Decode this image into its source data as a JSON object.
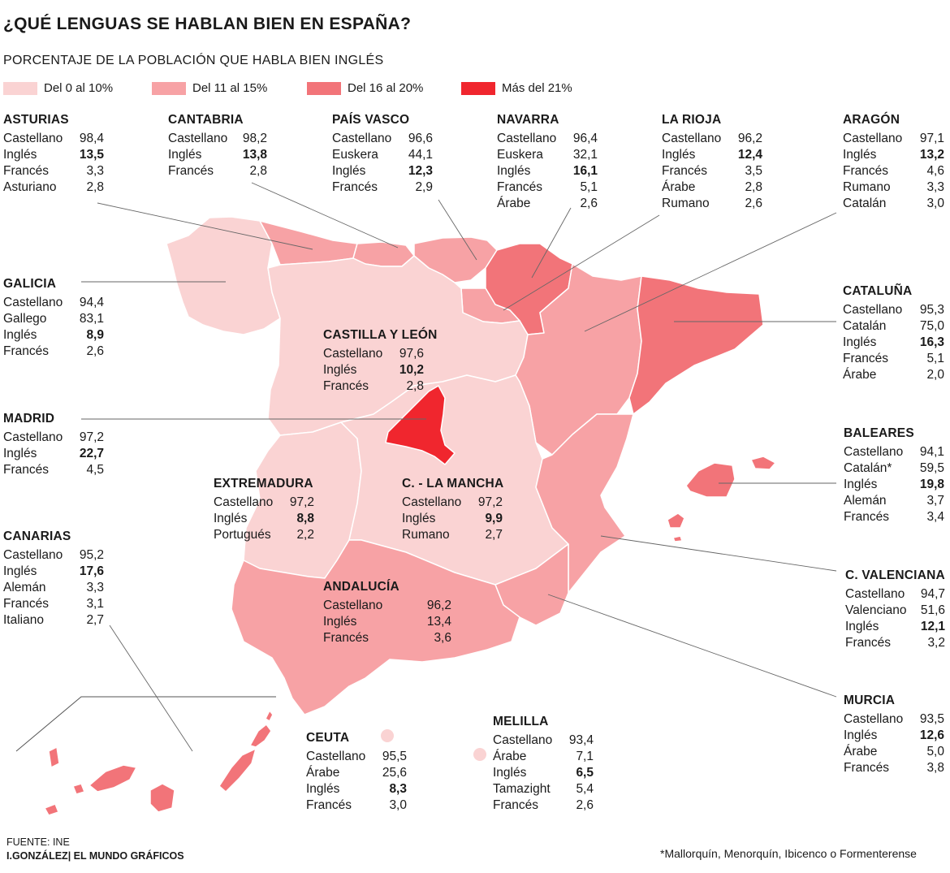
{
  "title": "¿QUÉ LENGUAS SE HABLAN BIEN EN ESPAÑA?",
  "subtitle": "PORCENTAJE DE LA POBLACIÓN QUE HABLA BIEN INGLÉS",
  "legend": [
    {
      "label": "Del 0 al 10%",
      "color": "#fad3d3"
    },
    {
      "label": "Del 11 al 15%",
      "color": "#f7a2a5"
    },
    {
      "label": "Del 16 al 20%",
      "color": "#f27479"
    },
    {
      "label": "Más del 21%",
      "color": "#f0262e"
    }
  ],
  "regions": {
    "asturias": {
      "name": "ASTURIAS",
      "rows": [
        [
          "Castellano",
          "98,4"
        ],
        [
          "Inglés",
          "13,5"
        ],
        [
          "Francés",
          "3,3"
        ],
        [
          "Asturiano",
          "2,8"
        ]
      ]
    },
    "cantabria": {
      "name": "CANTABRIA",
      "rows": [
        [
          "Castellano",
          "98,2"
        ],
        [
          "Inglés",
          "13,8"
        ],
        [
          "Francés",
          "2,8"
        ]
      ]
    },
    "pais_vasco": {
      "name": "PAÍS VASCO",
      "rows": [
        [
          "Castellano",
          "96,6"
        ],
        [
          "Euskera",
          "44,1"
        ],
        [
          "Inglés",
          "12,3"
        ],
        [
          "Francés",
          "2,9"
        ]
      ]
    },
    "navarra": {
      "name": "NAVARRA",
      "rows": [
        [
          "Castellano",
          "96,4"
        ],
        [
          "Euskera",
          "32,1"
        ],
        [
          "Inglés",
          "16,1"
        ],
        [
          "Francés",
          "5,1"
        ],
        [
          "Árabe",
          "2,6"
        ]
      ]
    },
    "la_rioja": {
      "name": "LA RIOJA",
      "rows": [
        [
          "Castellano",
          "96,2"
        ],
        [
          "Inglés",
          "12,4"
        ],
        [
          "Francés",
          "3,5"
        ],
        [
          "Árabe",
          "2,8"
        ],
        [
          "Rumano",
          "2,6"
        ]
      ]
    },
    "aragon": {
      "name": "ARAGÓN",
      "rows": [
        [
          "Castellano",
          "97,1"
        ],
        [
          "Inglés",
          "13,2"
        ],
        [
          "Francés",
          "4,6"
        ],
        [
          "Rumano",
          "3,3"
        ],
        [
          "Catalán",
          "3,0"
        ]
      ]
    },
    "galicia": {
      "name": "GALICIA",
      "rows": [
        [
          "Castellano",
          "94,4"
        ],
        [
          "Gallego",
          "83,1"
        ],
        [
          "Inglés",
          "8,9"
        ],
        [
          "Francés",
          "2,6"
        ]
      ]
    },
    "castilla_leon": {
      "name": "CASTILLA Y LEÓN",
      "rows": [
        [
          "Castellano",
          "97,6"
        ],
        [
          "Inglés",
          "10,2"
        ],
        [
          "Francés",
          "2,8"
        ]
      ]
    },
    "cataluna": {
      "name": "CATALUÑA",
      "rows": [
        [
          "Castellano",
          "95,3"
        ],
        [
          "Catalán",
          "75,0"
        ],
        [
          "Inglés",
          "16,3"
        ],
        [
          "Francés",
          "5,1"
        ],
        [
          "Árabe",
          "2,0"
        ]
      ]
    },
    "madrid": {
      "name": "MADRID",
      "rows": [
        [
          "Castellano",
          "97,2"
        ],
        [
          "Inglés",
          "22,7"
        ],
        [
          "Francés",
          "4,5"
        ]
      ]
    },
    "baleares": {
      "name": "BALEARES",
      "rows": [
        [
          "Castellano",
          "94,1"
        ],
        [
          "Catalán*",
          "59,5"
        ],
        [
          "Inglés",
          "19,8"
        ],
        [
          "Alemán",
          "3,7"
        ],
        [
          "Francés",
          "3,4"
        ]
      ]
    },
    "extremadura": {
      "name": "EXTREMADURA",
      "rows": [
        [
          "Castellano",
          "97,2"
        ],
        [
          "Inglés",
          "8,8"
        ],
        [
          "Portugués",
          "2,2"
        ]
      ]
    },
    "castilla_la_mancha": {
      "name": "C. - LA MANCHA",
      "rows": [
        [
          "Castellano",
          "97,2"
        ],
        [
          "Inglés",
          "9,9"
        ],
        [
          "Rumano",
          "2,7"
        ]
      ]
    },
    "canarias": {
      "name": "CANARIAS",
      "rows": [
        [
          "Castellano",
          "95,2"
        ],
        [
          "Inglés",
          "17,6"
        ],
        [
          "Alemán",
          "3,3"
        ],
        [
          "Francés",
          "3,1"
        ],
        [
          "Italiano",
          "2,7"
        ]
      ]
    },
    "andalucia": {
      "name": "ANDALUCÍA",
      "rows": [
        [
          "Castellano",
          "96,2"
        ],
        [
          "Inglés",
          "13,4"
        ],
        [
          "Francés",
          "3,6"
        ]
      ]
    },
    "valenciana": {
      "name": "C. VALENCIANA",
      "rows": [
        [
          "Castellano",
          "94,7"
        ],
        [
          "Valenciano",
          "51,6"
        ],
        [
          "Inglés",
          "12,1"
        ],
        [
          "Francés",
          "3,2"
        ]
      ]
    },
    "murcia": {
      "name": "MURCIA",
      "rows": [
        [
          "Castellano",
          "93,5"
        ],
        [
          "Inglés",
          "12,6"
        ],
        [
          "Árabe",
          "5,0"
        ],
        [
          "Francés",
          "3,8"
        ]
      ]
    },
    "ceuta": {
      "name": "CEUTA",
      "rows": [
        [
          "Castellano",
          "95,5"
        ],
        [
          "Árabe",
          "25,6"
        ],
        [
          "Inglés",
          "8,3"
        ],
        [
          "Francés",
          "3,0"
        ]
      ]
    },
    "melilla": {
      "name": "MELILLA",
      "rows": [
        [
          "Castellano",
          "93,4"
        ],
        [
          "Árabe",
          "7,1"
        ],
        [
          "Inglés",
          "6,5"
        ],
        [
          "Tamazight",
          "5,4"
        ],
        [
          "Francés",
          "2,6"
        ]
      ]
    }
  },
  "source": "FUENTE: INE",
  "credit": "I.GONZÁLEZ| EL MUNDO GRÁFICOS",
  "footnote": "*Mallorquín, Menorquín, Ibicenco o Formenterense"
}
